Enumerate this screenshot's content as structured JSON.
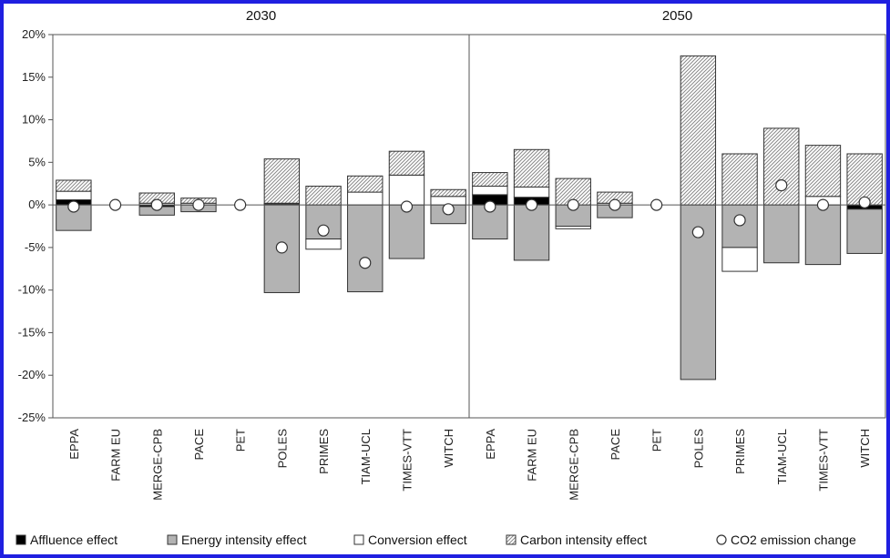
{
  "chart_data": {
    "type": "bar",
    "stacked": true,
    "ylim": [
      -25,
      20
    ],
    "yticks": [
      "20%",
      "15%",
      "10%",
      "5%",
      "0%",
      "-5%",
      "-10%",
      "-15%",
      "-20%",
      "-25%"
    ],
    "ytick_values": [
      20,
      15,
      10,
      5,
      0,
      -5,
      -10,
      -15,
      -20,
      -25
    ],
    "panels": [
      "2030",
      "2050"
    ],
    "categories": [
      "EPPA",
      "FARM EU",
      "MERGE-CPB",
      "PACE",
      "PET",
      "POLES",
      "PRIMES",
      "TIAM-UCL",
      "TIMES-VTT",
      "WITCH"
    ],
    "series": [
      {
        "name": "Affluence effect",
        "fill": "#000000"
      },
      {
        "name": "Energy intensity effect",
        "fill": "#b3b3b3"
      },
      {
        "name": "Conversion effect",
        "fill": "#ffffff"
      },
      {
        "name": "Carbon intensity  effect",
        "fill": "hatch"
      },
      {
        "name": "CO2 emission change",
        "marker": "circle"
      }
    ],
    "values": {
      "2030": {
        "Affluence effect": [
          0.6,
          0,
          -0.2,
          0,
          0,
          0.1,
          0,
          0,
          0,
          0
        ],
        "Energy intensity effect": [
          -3.0,
          0,
          -1.0,
          -0.8,
          0,
          -10.3,
          -4.0,
          -10.2,
          -6.3,
          -2.2
        ],
        "Conversion effect": [
          1.0,
          0,
          0.2,
          0.2,
          0,
          0.1,
          -1.2,
          1.5,
          3.5,
          1.0
        ],
        "Carbon intensity  effect": [
          1.3,
          0,
          1.2,
          0.6,
          0,
          5.2,
          2.2,
          1.9,
          2.8,
          0.8
        ],
        "CO2 emission change": [
          -0.2,
          0,
          0,
          0,
          0,
          -5.0,
          -3.0,
          -6.8,
          -0.2,
          -0.5
        ]
      },
      "2050": {
        "Affluence effect": [
          1.2,
          0.9,
          0,
          0,
          0,
          0,
          0,
          0,
          0,
          -0.5
        ],
        "Energy intensity effect": [
          -4.0,
          -6.5,
          -2.5,
          -1.5,
          0,
          -20.5,
          -5.0,
          -6.8,
          -7.0,
          -5.2
        ],
        "Conversion effect": [
          1.0,
          1.2,
          -0.3,
          0.2,
          0,
          0,
          -2.8,
          0,
          1.0,
          0
        ],
        "Carbon intensity  effect": [
          1.6,
          4.4,
          3.1,
          1.3,
          0,
          17.5,
          6.0,
          9.0,
          6.0,
          6.0
        ],
        "CO2 emission change": [
          -0.2,
          0,
          0,
          0,
          0,
          -3.2,
          -1.8,
          2.3,
          0,
          0.3
        ]
      }
    }
  }
}
